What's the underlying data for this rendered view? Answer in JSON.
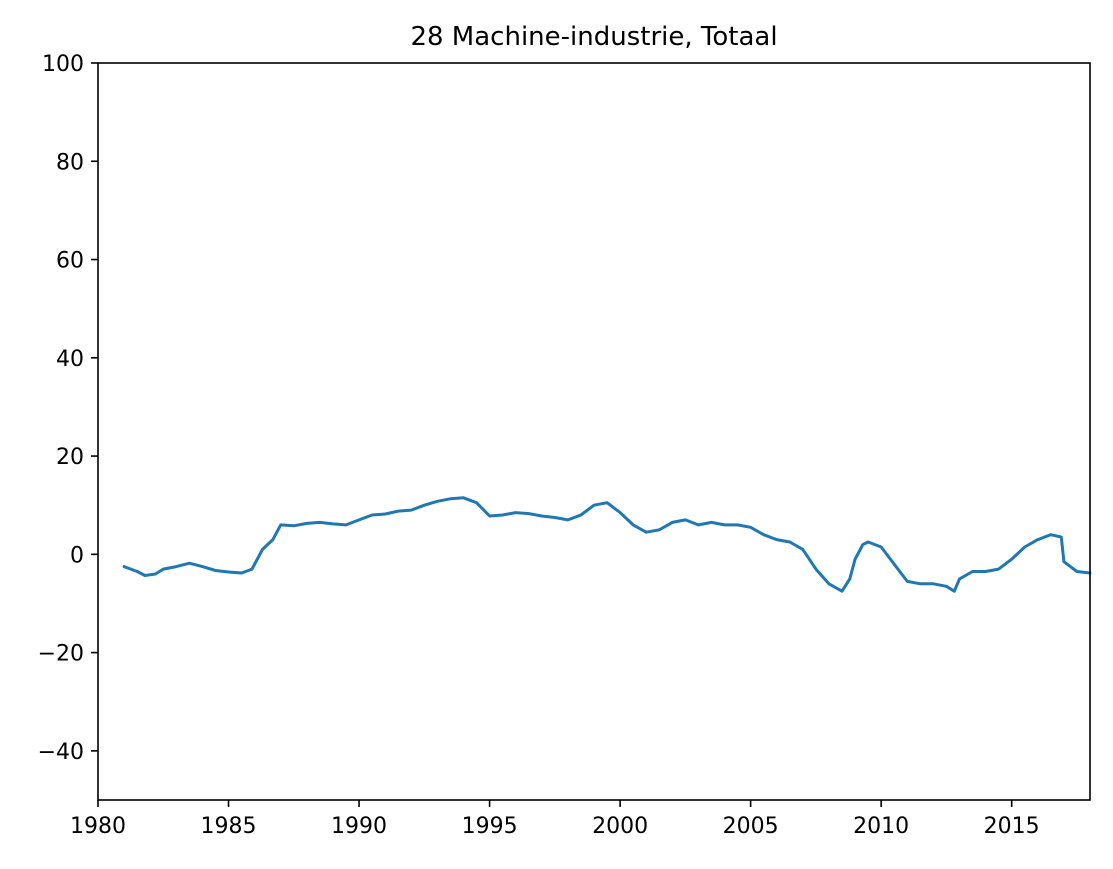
{
  "chart_data": {
    "type": "line",
    "title": "28 Machine-industrie, Totaal",
    "xlabel": "",
    "ylabel": "",
    "xlim": [
      1980,
      2018
    ],
    "ylim": [
      -50,
      100
    ],
    "x_ticks": [
      1980,
      1985,
      1990,
      1995,
      2000,
      2005,
      2010,
      2015
    ],
    "x_tick_labels": [
      "1980",
      "1985",
      "1990",
      "1995",
      "2000",
      "2005",
      "2010",
      "2015"
    ],
    "y_ticks": [
      -40,
      -20,
      0,
      20,
      40,
      60,
      80,
      100
    ],
    "y_tick_labels": [
      "−40",
      "−20",
      "0",
      "20",
      "40",
      "60",
      "80",
      "100"
    ],
    "grid": false,
    "legend": "none",
    "series": [
      {
        "color": "#1f77b4",
        "x": [
          1981.0,
          1981.5,
          1981.8,
          1982.2,
          1982.5,
          1983.0,
          1983.5,
          1984.0,
          1984.5,
          1985.0,
          1985.5,
          1985.9,
          1986.3,
          1986.7,
          1987.0,
          1987.5,
          1988.0,
          1988.5,
          1989.0,
          1989.5,
          1990.0,
          1990.5,
          1991.0,
          1991.5,
          1992.0,
          1992.5,
          1993.0,
          1993.5,
          1994.0,
          1994.5,
          1995.0,
          1995.5,
          1996.0,
          1996.5,
          1997.0,
          1997.5,
          1998.0,
          1998.5,
          1999.0,
          1999.5,
          2000.0,
          2000.5,
          2001.0,
          2001.5,
          2002.0,
          2002.5,
          2003.0,
          2003.5,
          2004.0,
          2004.5,
          2005.0,
          2005.5,
          2006.0,
          2006.5,
          2007.0,
          2007.5,
          2008.0,
          2008.5,
          2008.8,
          2009.0,
          2009.3,
          2009.5,
          2010.0,
          2010.5,
          2011.0,
          2011.5,
          2012.0,
          2012.5,
          2012.8,
          2013.0,
          2013.5,
          2014.0,
          2014.5,
          2015.0,
          2015.5,
          2016.0,
          2016.5,
          2016.9,
          2017.0,
          2017.5,
          2018.0
        ],
        "y": [
          -2.5,
          -3.5,
          -4.3,
          -4.0,
          -3.0,
          -2.5,
          -1.8,
          -2.5,
          -3.3,
          -3.6,
          -3.8,
          -3.0,
          1.0,
          3.0,
          6.0,
          5.8,
          6.3,
          6.5,
          6.2,
          6.0,
          7.0,
          8.0,
          8.2,
          8.8,
          9.0,
          10.0,
          10.8,
          11.3,
          11.5,
          10.5,
          7.8,
          8.0,
          8.5,
          8.3,
          7.8,
          7.5,
          7.0,
          8.0,
          10.0,
          10.5,
          8.5,
          6.0,
          4.5,
          5.0,
          6.5,
          7.0,
          6.0,
          6.5,
          6.0,
          6.0,
          5.5,
          4.0,
          3.0,
          2.5,
          1.0,
          -3.0,
          -6.0,
          -7.5,
          -5.0,
          -1.0,
          2.0,
          2.5,
          1.5,
          -2.0,
          -5.5,
          -6.0,
          -6.0,
          -6.5,
          -7.5,
          -5.0,
          -3.5,
          -3.5,
          -3.0,
          -1.0,
          1.5,
          3.0,
          4.0,
          3.5,
          -1.5,
          -3.5,
          -3.8
        ]
      }
    ]
  }
}
